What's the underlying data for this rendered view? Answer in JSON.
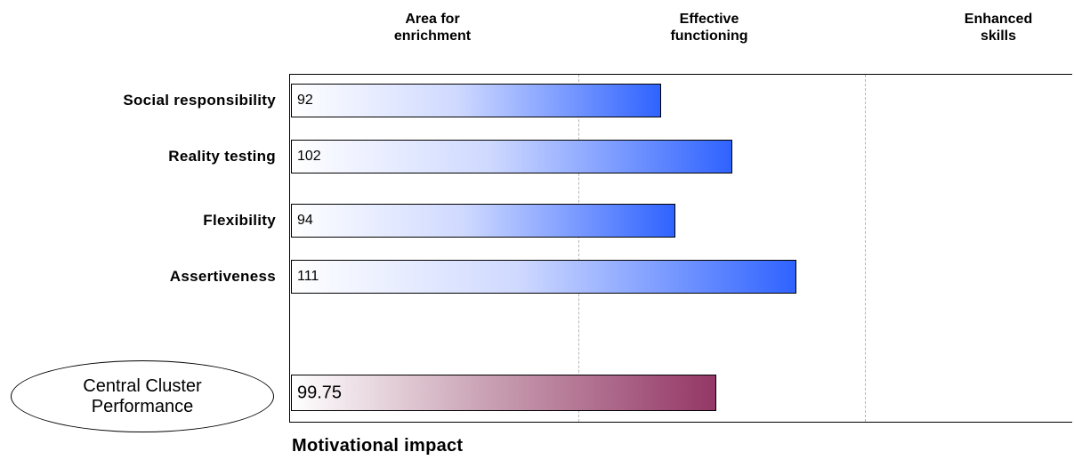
{
  "zones": [
    {
      "line1": "Area for",
      "line2": "enrichment"
    },
    {
      "line1": "Effective",
      "line2": "functioning"
    },
    {
      "line1": "Enhanced",
      "line2": "skills"
    }
  ],
  "summary": {
    "label_line1": "Central Cluster",
    "label_line2": "Performance",
    "value_text": "99.75",
    "value": 99.75
  },
  "footer": "Motivational impact",
  "colors": {
    "bar_gradient_end": "#2f63ff",
    "summary_gradient_end": "#943766",
    "gridline": "#b5b5b5"
  },
  "chart_data": {
    "type": "bar",
    "orientation": "horizontal",
    "categories": [
      "Social responsibility",
      "Reality testing",
      "Flexibility",
      "Assertiveness"
    ],
    "values": [
      92,
      102,
      94,
      111
    ],
    "value_labels": [
      "92",
      "102",
      "94",
      "111"
    ],
    "xlim": [
      40,
      150
    ],
    "zone_boundaries": [
      80,
      120
    ],
    "grid": "dashed vertical lines at zone boundaries",
    "title": "",
    "xlabel": "",
    "ylabel": ""
  }
}
